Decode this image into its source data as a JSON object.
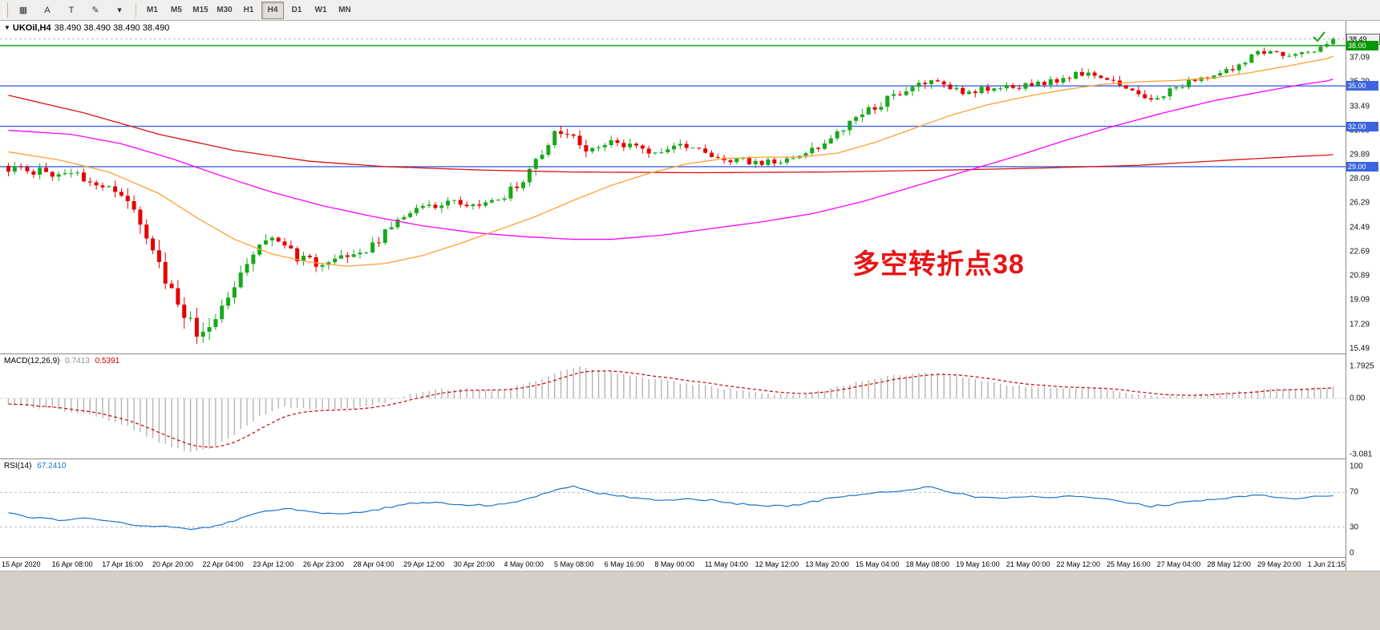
{
  "toolbar": {
    "left_tools": [
      {
        "id": "chart-grid",
        "glyph": "▦"
      },
      {
        "id": "cursor-a",
        "glyph": "A"
      },
      {
        "id": "text-t",
        "glyph": "T"
      },
      {
        "id": "draw-objects",
        "glyph": "✎"
      },
      {
        "id": "draw-objects-caret",
        "glyph": "▾"
      }
    ],
    "timeframes": [
      "M1",
      "M5",
      "M15",
      "M30",
      "H1",
      "H4",
      "D1",
      "W1",
      "MN"
    ],
    "active_timeframe": "H4"
  },
  "chart": {
    "dropdown_icon": "▼",
    "symbol_line": "UKOil,H4",
    "quotes": "38.490 38.490 38.490 38.490",
    "annotation": {
      "text": "多空转折点38",
      "color": "#e81414"
    },
    "colors": {
      "up": "#17a81c",
      "down": "#e60000",
      "ma_red": "#dd1111",
      "ma_magenta": "#ff00ff",
      "ma_orange": "#ffa033",
      "level_green": "#009900",
      "level_blue": "#3c64e0"
    }
  },
  "price_axis": {
    "labels": [
      37.09,
      35.29,
      33.49,
      31.69,
      29.89,
      28.09,
      26.29,
      24.49,
      22.69,
      20.89,
      19.09,
      17.29,
      15.49
    ],
    "tags": [
      {
        "text": "38.49",
        "price": 38.49,
        "bg": "#efefef",
        "fg": "#000000",
        "border": "#666666"
      },
      {
        "text": "38.00",
        "price": 38.0,
        "bg": "#009900",
        "fg": "#ffffff"
      },
      {
        "text": "35.00",
        "price": 35.0,
        "bg": "#3c64e0",
        "fg": "#ffffff"
      },
      {
        "text": "32.00",
        "price": 32.0,
        "bg": "#3c64e0",
        "fg": "#ffffff"
      },
      {
        "text": "29.00",
        "price": 29.0,
        "bg": "#3c64e0",
        "fg": "#ffffff"
      }
    ]
  },
  "macd": {
    "title": "MACD(12,26,9)",
    "value_main": "0.7413",
    "value_signal": "0.5391",
    "axis_labels": [
      "1.7925",
      "0.00",
      "-3.081"
    ],
    "axis_values": [
      1.7925,
      0,
      -3.081
    ]
  },
  "rsi": {
    "title": "RSI(14)",
    "value": "67.2410",
    "axis_labels": [
      100,
      70,
      30,
      0
    ],
    "dashed_levels": [
      70,
      30
    ]
  },
  "time_axis": {
    "labels": [
      "15 Apr 2020",
      "16 Apr 08:00",
      "17 Apr 16:00",
      "20 Apr 20:00",
      "22 Apr 04:00",
      "23 Apr 12:00",
      "26 Apr 23:00",
      "28 Apr 04:00",
      "29 Apr 12:00",
      "30 Apr 20:00",
      "4 May 00:00",
      "5 May 08:00",
      "6 May 16:00",
      "8 May 00:00",
      "11 May 04:00",
      "12 May 12:00",
      "13 May 20:00",
      "15 May 04:00",
      "18 May 08:00",
      "19 May 16:00",
      "21 May 00:00",
      "22 May 12:00",
      "25 May 16:00",
      "27 May 04:00",
      "28 May 12:00",
      "29 May 20:00",
      "1 Jun 21:15"
    ]
  },
  "chart_data": {
    "type": "candlestick",
    "symbol": "UKOil",
    "timeframe": "H4",
    "bars": 212,
    "current_price": 38.49,
    "current_bar_ohlc": {
      "open": 38.49,
      "high": 38.49,
      "low": 38.49,
      "close": 38.49
    },
    "levels": [
      {
        "price": 38.0,
        "color": "green"
      },
      {
        "price": 35.0,
        "color": "blue"
      },
      {
        "price": 32.0,
        "color": "blue"
      },
      {
        "price": 29.0,
        "color": "blue"
      }
    ],
    "price_path": [
      [
        0,
        28.9,
        0.5
      ],
      [
        6,
        28.6,
        0.5
      ],
      [
        12,
        28.3,
        0.5
      ],
      [
        16,
        27.5,
        0.55
      ],
      [
        20,
        26.0,
        0.8
      ],
      [
        24,
        22.8,
        1.1
      ],
      [
        27,
        19.2,
        1.2
      ],
      [
        30,
        16.8,
        1.25
      ],
      [
        32,
        16.6,
        1.1
      ],
      [
        35,
        19.0,
        0.95
      ],
      [
        38,
        21.8,
        0.85
      ],
      [
        41,
        23.9,
        0.8
      ],
      [
        44,
        23.3,
        0.7
      ],
      [
        47,
        22.2,
        0.65
      ],
      [
        50,
        21.8,
        0.6
      ],
      [
        54,
        22.1,
        0.6
      ],
      [
        58,
        22.8,
        0.6
      ],
      [
        62,
        24.8,
        0.6
      ],
      [
        66,
        25.8,
        0.55
      ],
      [
        70,
        26.4,
        0.5
      ],
      [
        74,
        26.1,
        0.5
      ],
      [
        78,
        26.3,
        0.5
      ],
      [
        82,
        27.8,
        0.6
      ],
      [
        85,
        29.8,
        0.7
      ],
      [
        88,
        31.6,
        0.7
      ],
      [
        90,
        31.8,
        0.6
      ],
      [
        93,
        30.0,
        0.6
      ],
      [
        96,
        30.9,
        0.55
      ],
      [
        99,
        30.6,
        0.5
      ],
      [
        102,
        30.0,
        0.5
      ],
      [
        105,
        30.2,
        0.45
      ],
      [
        108,
        30.5,
        0.45
      ],
      [
        111,
        30.1,
        0.4
      ],
      [
        114,
        29.7,
        0.4
      ],
      [
        117,
        29.4,
        0.4
      ],
      [
        120,
        29.4,
        0.4
      ],
      [
        123,
        29.2,
        0.45
      ],
      [
        126,
        29.5,
        0.5
      ],
      [
        129,
        30.2,
        0.55
      ],
      [
        132,
        31.4,
        0.6
      ],
      [
        135,
        32.4,
        0.6
      ],
      [
        138,
        33.2,
        0.55
      ],
      [
        141,
        34.2,
        0.55
      ],
      [
        144,
        34.9,
        0.5
      ],
      [
        147,
        35.3,
        0.5
      ],
      [
        150,
        34.9,
        0.45
      ],
      [
        153,
        34.5,
        0.45
      ],
      [
        156,
        34.8,
        0.4
      ],
      [
        159,
        35.1,
        0.4
      ],
      [
        162,
        35.0,
        0.4
      ],
      [
        165,
        35.2,
        0.4
      ],
      [
        168,
        35.5,
        0.4
      ],
      [
        171,
        35.9,
        0.4
      ],
      [
        174,
        35.7,
        0.4
      ],
      [
        177,
        35.3,
        0.45
      ],
      [
        180,
        34.4,
        0.5
      ],
      [
        182,
        33.9,
        0.45
      ],
      [
        184,
        34.3,
        0.4
      ],
      [
        187,
        35.0,
        0.4
      ],
      [
        190,
        35.5,
        0.4
      ],
      [
        193,
        35.9,
        0.4
      ],
      [
        196,
        36.4,
        0.45
      ],
      [
        199,
        37.3,
        0.45
      ],
      [
        202,
        37.5,
        0.35
      ],
      [
        205,
        37.3,
        0.3
      ],
      [
        208,
        37.5,
        0.35
      ],
      [
        210,
        38.0,
        0.3
      ],
      [
        212,
        38.5,
        0.25
      ]
    ],
    "ma_red": [
      [
        0,
        34.3
      ],
      [
        12,
        33.0
      ],
      [
        24,
        31.4
      ],
      [
        36,
        30.2
      ],
      [
        48,
        29.4
      ],
      [
        60,
        29.0
      ],
      [
        75,
        28.75
      ],
      [
        90,
        28.6
      ],
      [
        110,
        28.55
      ],
      [
        130,
        28.6
      ],
      [
        150,
        28.75
      ],
      [
        165,
        28.9
      ],
      [
        180,
        29.1
      ],
      [
        195,
        29.5
      ],
      [
        205,
        29.75
      ],
      [
        212,
        29.9
      ]
    ],
    "ma_magenta": [
      [
        0,
        31.7
      ],
      [
        10,
        31.4
      ],
      [
        18,
        30.7
      ],
      [
        26,
        29.6
      ],
      [
        34,
        28.3
      ],
      [
        42,
        27.1
      ],
      [
        50,
        26.1
      ],
      [
        58,
        25.3
      ],
      [
        66,
        24.6
      ],
      [
        74,
        24.1
      ],
      [
        82,
        23.8
      ],
      [
        90,
        23.6
      ],
      [
        96,
        23.6
      ],
      [
        104,
        23.9
      ],
      [
        112,
        24.4
      ],
      [
        120,
        24.9
      ],
      [
        128,
        25.5
      ],
      [
        136,
        26.4
      ],
      [
        144,
        27.5
      ],
      [
        152,
        28.6
      ],
      [
        160,
        29.7
      ],
      [
        168,
        30.9
      ],
      [
        176,
        32.0
      ],
      [
        184,
        33.0
      ],
      [
        192,
        33.9
      ],
      [
        200,
        34.6
      ],
      [
        206,
        35.1
      ],
      [
        212,
        35.5
      ]
    ],
    "ma_orange": [
      [
        0,
        30.1
      ],
      [
        8,
        29.5
      ],
      [
        16,
        28.6
      ],
      [
        24,
        27.0
      ],
      [
        30,
        25.2
      ],
      [
        36,
        23.6
      ],
      [
        42,
        22.5
      ],
      [
        48,
        21.9
      ],
      [
        54,
        21.6
      ],
      [
        60,
        21.8
      ],
      [
        66,
        22.4
      ],
      [
        72,
        23.3
      ],
      [
        78,
        24.3
      ],
      [
        84,
        25.3
      ],
      [
        90,
        26.5
      ],
      [
        96,
        27.6
      ],
      [
        102,
        28.5
      ],
      [
        108,
        29.2
      ],
      [
        114,
        29.6
      ],
      [
        120,
        29.7
      ],
      [
        126,
        29.7
      ],
      [
        132,
        30.0
      ],
      [
        138,
        30.8
      ],
      [
        144,
        31.8
      ],
      [
        150,
        32.8
      ],
      [
        156,
        33.6
      ],
      [
        162,
        34.2
      ],
      [
        168,
        34.7
      ],
      [
        174,
        35.1
      ],
      [
        180,
        35.3
      ],
      [
        186,
        35.4
      ],
      [
        192,
        35.6
      ],
      [
        198,
        36.0
      ],
      [
        204,
        36.5
      ],
      [
        212,
        37.2
      ]
    ],
    "macd_main": [
      [
        0,
        -0.35
      ],
      [
        6,
        -0.55
      ],
      [
        12,
        -0.8
      ],
      [
        18,
        -1.4
      ],
      [
        24,
        -2.4
      ],
      [
        28,
        -2.95
      ],
      [
        32,
        -2.8
      ],
      [
        36,
        -2.0
      ],
      [
        40,
        -1.0
      ],
      [
        44,
        -0.5
      ],
      [
        48,
        -0.55
      ],
      [
        52,
        -0.6
      ],
      [
        56,
        -0.5
      ],
      [
        60,
        -0.2
      ],
      [
        64,
        0.2
      ],
      [
        68,
        0.5
      ],
      [
        72,
        0.55
      ],
      [
        76,
        0.45
      ],
      [
        80,
        0.55
      ],
      [
        84,
        1.0
      ],
      [
        88,
        1.5
      ],
      [
        91,
        1.72
      ],
      [
        94,
        1.6
      ],
      [
        98,
        1.35
      ],
      [
        102,
        1.1
      ],
      [
        106,
        0.9
      ],
      [
        110,
        0.75
      ],
      [
        114,
        0.55
      ],
      [
        118,
        0.35
      ],
      [
        122,
        0.2
      ],
      [
        126,
        0.2
      ],
      [
        130,
        0.45
      ],
      [
        134,
        0.8
      ],
      [
        138,
        1.1
      ],
      [
        142,
        1.3
      ],
      [
        146,
        1.42
      ],
      [
        150,
        1.3
      ],
      [
        154,
        1.05
      ],
      [
        158,
        0.8
      ],
      [
        162,
        0.65
      ],
      [
        166,
        0.6
      ],
      [
        170,
        0.6
      ],
      [
        174,
        0.5
      ],
      [
        178,
        0.3
      ],
      [
        182,
        0.15
      ],
      [
        186,
        0.12
      ],
      [
        190,
        0.2
      ],
      [
        194,
        0.3
      ],
      [
        198,
        0.45
      ],
      [
        202,
        0.55
      ],
      [
        206,
        0.55
      ],
      [
        209,
        0.62
      ],
      [
        212,
        0.74
      ]
    ],
    "rsi_line": [
      [
        0,
        46
      ],
      [
        4,
        41
      ],
      [
        8,
        38
      ],
      [
        12,
        41
      ],
      [
        16,
        37
      ],
      [
        20,
        33
      ],
      [
        24,
        31
      ],
      [
        28,
        28
      ],
      [
        32,
        29
      ],
      [
        36,
        37
      ],
      [
        40,
        47
      ],
      [
        44,
        52
      ],
      [
        48,
        48
      ],
      [
        52,
        45
      ],
      [
        56,
        47
      ],
      [
        60,
        52
      ],
      [
        64,
        57
      ],
      [
        68,
        59
      ],
      [
        72,
        56
      ],
      [
        76,
        55
      ],
      [
        80,
        58
      ],
      [
        84,
        66
      ],
      [
        88,
        74
      ],
      [
        90,
        78
      ],
      [
        93,
        70
      ],
      [
        96,
        67
      ],
      [
        100,
        64
      ],
      [
        104,
        61
      ],
      [
        108,
        63
      ],
      [
        112,
        61
      ],
      [
        116,
        57
      ],
      [
        120,
        55
      ],
      [
        124,
        54
      ],
      [
        128,
        59
      ],
      [
        132,
        65
      ],
      [
        136,
        68
      ],
      [
        140,
        71
      ],
      [
        144,
        74
      ],
      [
        147,
        77
      ],
      [
        150,
        71
      ],
      [
        154,
        65
      ],
      [
        158,
        63
      ],
      [
        162,
        65
      ],
      [
        166,
        64
      ],
      [
        170,
        66
      ],
      [
        174,
        64
      ],
      [
        178,
        59
      ],
      [
        182,
        54
      ],
      [
        186,
        57
      ],
      [
        190,
        61
      ],
      [
        194,
        63
      ],
      [
        198,
        67
      ],
      [
        202,
        65
      ],
      [
        206,
        63
      ],
      [
        209,
        66
      ],
      [
        212,
        67.24
      ]
    ]
  }
}
